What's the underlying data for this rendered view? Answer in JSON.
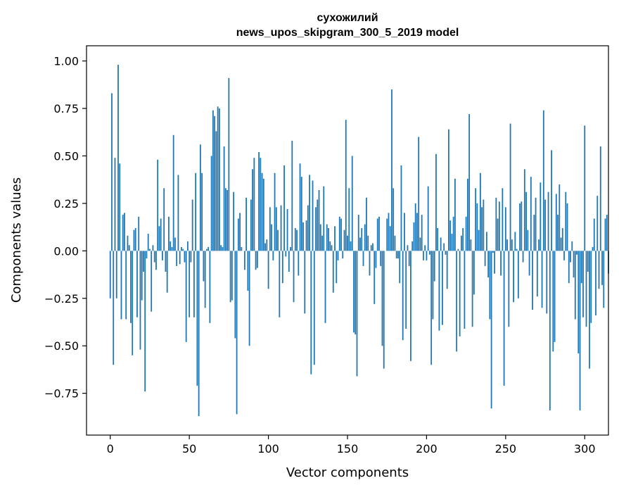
{
  "chart_data": {
    "type": "bar",
    "title": "сухожилий",
    "subtitle": "news_upos_skipgram_300_5_2019 model",
    "xlabel": "Vector components",
    "ylabel": "Components values",
    "xlim": [
      -15,
      315
    ],
    "ylim": [
      -0.97,
      1.08
    ],
    "xticks": [
      0,
      50,
      100,
      150,
      200,
      250,
      300
    ],
    "xtick_labels": [
      "0",
      "50",
      "100",
      "150",
      "200",
      "250",
      "300"
    ],
    "yticks": [
      1.0,
      0.75,
      0.5,
      0.25,
      0.0,
      -0.25,
      -0.5,
      -0.75
    ],
    "ytick_labels": [
      "1.00",
      "0.75",
      "0.50",
      "0.25",
      "0.00",
      "−0.25",
      "−0.50",
      "−0.75"
    ],
    "grid": false,
    "bar_color": "#1f77b4",
    "values": [
      -0.25,
      0.83,
      -0.6,
      0.49,
      -0.25,
      0.98,
      0.46,
      -0.36,
      0.19,
      0.2,
      -0.36,
      0.08,
      0.03,
      -0.38,
      -0.55,
      0.11,
      0.12,
      -0.35,
      0.18,
      -0.52,
      -0.26,
      -0.11,
      -0.74,
      -0.04,
      0.09,
      0.01,
      -0.32,
      0.03,
      -0.06,
      -0.1,
      0.48,
      0.13,
      0.17,
      -0.05,
      0.33,
      -0.11,
      -0.22,
      0.18,
      0.05,
      0.02,
      0.61,
      0.07,
      -0.08,
      0.4,
      -0.07,
      0.02,
      0.01,
      -0.06,
      -0.48,
      0.05,
      -0.35,
      -0.06,
      0.27,
      -0.35,
      0.41,
      -0.71,
      -0.87,
      0.56,
      0.41,
      -0.16,
      -0.3,
      0.01,
      0.02,
      -0.38,
      0.5,
      0.74,
      0.71,
      0.63,
      0.76,
      0.75,
      0.03,
      0.02,
      0.55,
      0.33,
      0.32,
      0.91,
      -0.27,
      -0.26,
      0.31,
      -0.46,
      -0.86,
      0.17,
      0.2,
      0.02,
      0.0,
      -0.1,
      0.28,
      -0.21,
      -0.5,
      0.27,
      0.43,
      0.49,
      -0.1,
      -0.09,
      0.52,
      0.49,
      0.41,
      0.38,
      0.04,
      0.06,
      -0.2,
      0.23,
      0.14,
      -0.05,
      0.41,
      0.23,
      0.11,
      -0.35,
      0.24,
      -0.17,
      0.45,
      -0.03,
      0.22,
      -0.11,
      0.02,
      0.58,
      -0.27,
      0.12,
      0.11,
      -0.13,
      0.46,
      0.39,
      0.15,
      -0.33,
      0.16,
      0.24,
      0.4,
      -0.65,
      0.37,
      -0.6,
      0.23,
      0.27,
      0.32,
      0.14,
      0.08,
      0.34,
      -0.38,
      0.14,
      0.12,
      0.05,
      0.03,
      -0.22,
      0.13,
      -0.17,
      -0.05,
      0.18,
      0.17,
      -0.04,
      0.11,
      0.69,
      0.08,
      0.33,
      0.05,
      0.5,
      -0.43,
      -0.44,
      -0.66,
      0.19,
      0.07,
      0.12,
      -0.08,
      0.14,
      0.28,
      0.08,
      -0.13,
      0.03,
      0.04,
      -0.28,
      -0.09,
      0.17,
      0.18,
      -0.08,
      -0.5,
      -0.62,
      0.0,
      0.17,
      0.2,
      0.13,
      0.85,
      0.33,
      0.08,
      -0.04,
      -0.04,
      -0.17,
      0.45,
      -0.47,
      0.2,
      -0.41,
      0.03,
      -0.08,
      -0.58,
      0.05,
      0.15,
      0.25,
      0.2,
      0.6,
      0.07,
      0.19,
      -0.05,
      0.03,
      -0.05,
      0.34,
      -0.02,
      -0.6,
      -0.36,
      -0.16,
      0.51,
      0.12,
      -0.42,
      0.07,
      -0.39,
      0.04,
      -0.02,
      -0.2,
      0.64,
      0.16,
      0.09,
      0.18,
      0.38,
      -0.53,
      0.01,
      -0.45,
      0.08,
      0.12,
      -0.41,
      0.18,
      0.38,
      0.72,
      0.06,
      -0.4,
      -0.23,
      0.33,
      0.25,
      0.11,
      0.41,
      0.23,
      0.27,
      -0.08,
      0.1,
      -0.14,
      -0.36,
      -0.83,
      -0.01,
      -0.12,
      0.28,
      0.17,
      0.26,
      -0.13,
      0.33,
      -0.71,
      0.23,
      0.06,
      -0.4,
      0.67,
      0.06,
      -0.27,
      0.1,
      0.01,
      -0.25,
      0.25,
      0.26,
      -0.06,
      0.43,
      0.31,
      0.11,
      -0.13,
      0.39,
      -0.31,
      0.19,
      0.28,
      -0.24,
      0.06,
      0.36,
      -0.3,
      0.74,
      0.27,
      -0.33,
      0.31,
      -0.84,
      0.53,
      -0.53,
      -0.48,
      0.3,
      0.19,
      0.35,
      0.07,
      0.12,
      -0.05,
      0.31,
      0.25,
      -0.17,
      -0.06,
      0.05,
      -0.14,
      -0.36,
      -0.02,
      -0.54,
      -0.84,
      -0.17,
      -0.35,
      0.66,
      -0.4,
      -0.11,
      -0.62,
      -0.38,
      0.02,
      0.17,
      -0.34,
      0.29,
      -0.2,
      0.55,
      -0.18,
      -0.3,
      0.17,
      0.19,
      -0.12
    ]
  }
}
